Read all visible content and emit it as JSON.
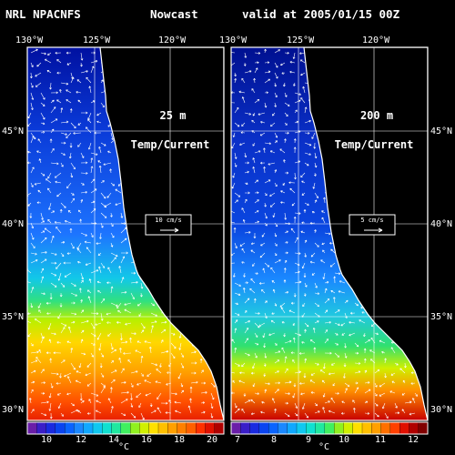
{
  "header": {
    "left": "NRL NPACNFS",
    "middle": "Nowcast",
    "right": "valid at 2005/01/15 00Z"
  },
  "longitude_labels": [
    "130°W",
    "125°W",
    "120°W"
  ],
  "latitude_labels": [
    "45°N",
    "40°N",
    "35°N",
    "30°N"
  ],
  "panels": [
    {
      "depth": "25 m",
      "field": "Temp/Current",
      "ref_vector": "10 cm/s",
      "colorbar_ticks": [
        "10",
        "12",
        "14",
        "16",
        "18",
        "20"
      ],
      "colorbar_unit": "°C"
    },
    {
      "depth": "200 m",
      "field": "Temp/Current",
      "ref_vector": "5 cm/s",
      "colorbar_ticks": [
        "7",
        "8",
        "9",
        "10",
        "11",
        "12"
      ],
      "colorbar_unit": "°C"
    }
  ],
  "colors": {
    "background": "#000000",
    "land": "#000000",
    "coast": "#ffffff",
    "vectors": "#ffffff"
  }
}
